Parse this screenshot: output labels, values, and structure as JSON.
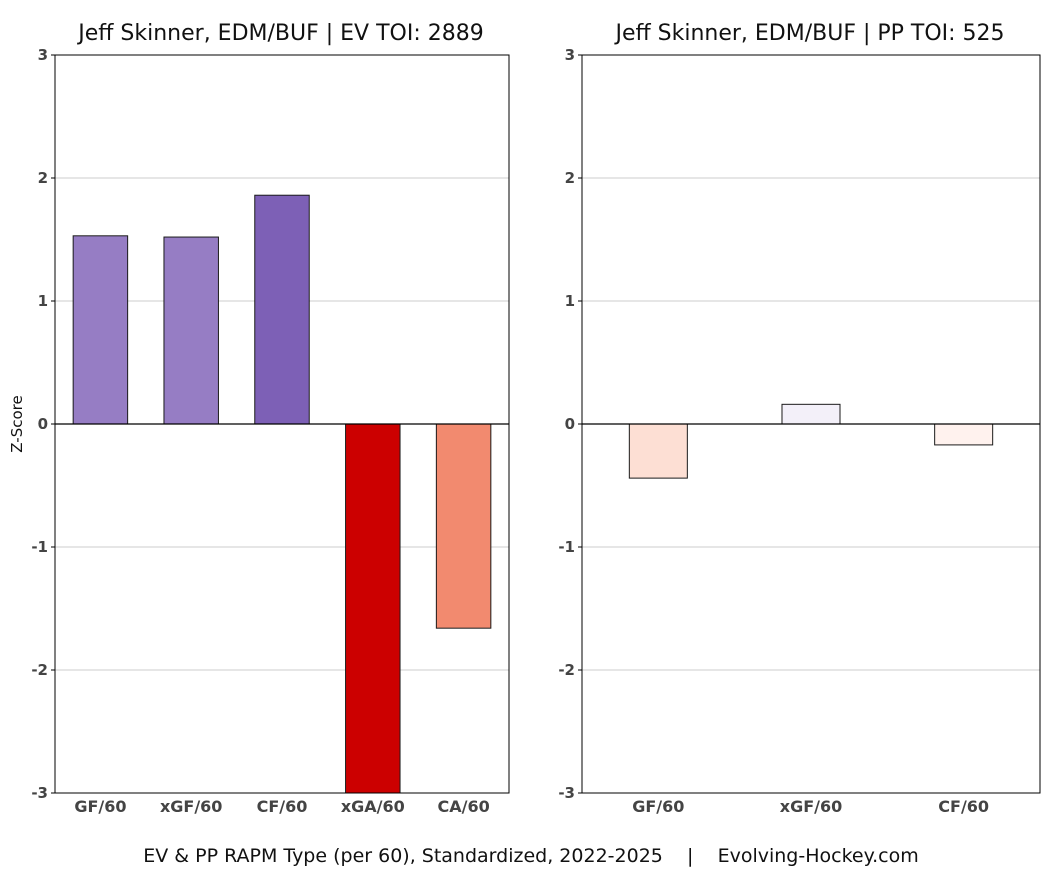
{
  "caption": "EV & PP RAPM Type (per 60), Standardized, 2022-2025    |    Evolving-Hockey.com",
  "chart_data": [
    {
      "type": "bar",
      "title": "Jeff Skinner, EDM/BUF  |  EV TOI: 2889",
      "ylabel": "Z-Score",
      "ylim": [
        -3,
        3
      ],
      "yticks": [
        3,
        2,
        1,
        0,
        -1,
        -2,
        -3
      ],
      "ytick_labels": [
        "3",
        "2",
        "1",
        "0",
        "-1",
        "-2",
        "-3"
      ],
      "grid": true,
      "categories": [
        "GF/60",
        "xGF/60",
        "CF/60",
        "xGA/60",
        "CA/60"
      ],
      "values": [
        1.53,
        1.52,
        1.86,
        -3.0,
        -1.66
      ],
      "colors": [
        "#967dc4",
        "#967dc4",
        "#7d60b6",
        "#cc0000",
        "#f28a6f"
      ]
    },
    {
      "type": "bar",
      "title": "Jeff Skinner, EDM/BUF  |  PP TOI: 525",
      "ylabel": "",
      "ylim": [
        -3,
        3
      ],
      "yticks": [
        3,
        2,
        1,
        0,
        -1,
        -2,
        -3
      ],
      "ytick_labels": [
        "3",
        "2",
        "1",
        "0",
        "-1",
        "-2",
        "-3"
      ],
      "grid": true,
      "categories": [
        "GF/60",
        "xGF/60",
        "CF/60"
      ],
      "values": [
        -0.44,
        0.16,
        -0.17
      ],
      "colors": [
        "#fddfd4",
        "#f3f0f9",
        "#fff2ee"
      ]
    }
  ]
}
